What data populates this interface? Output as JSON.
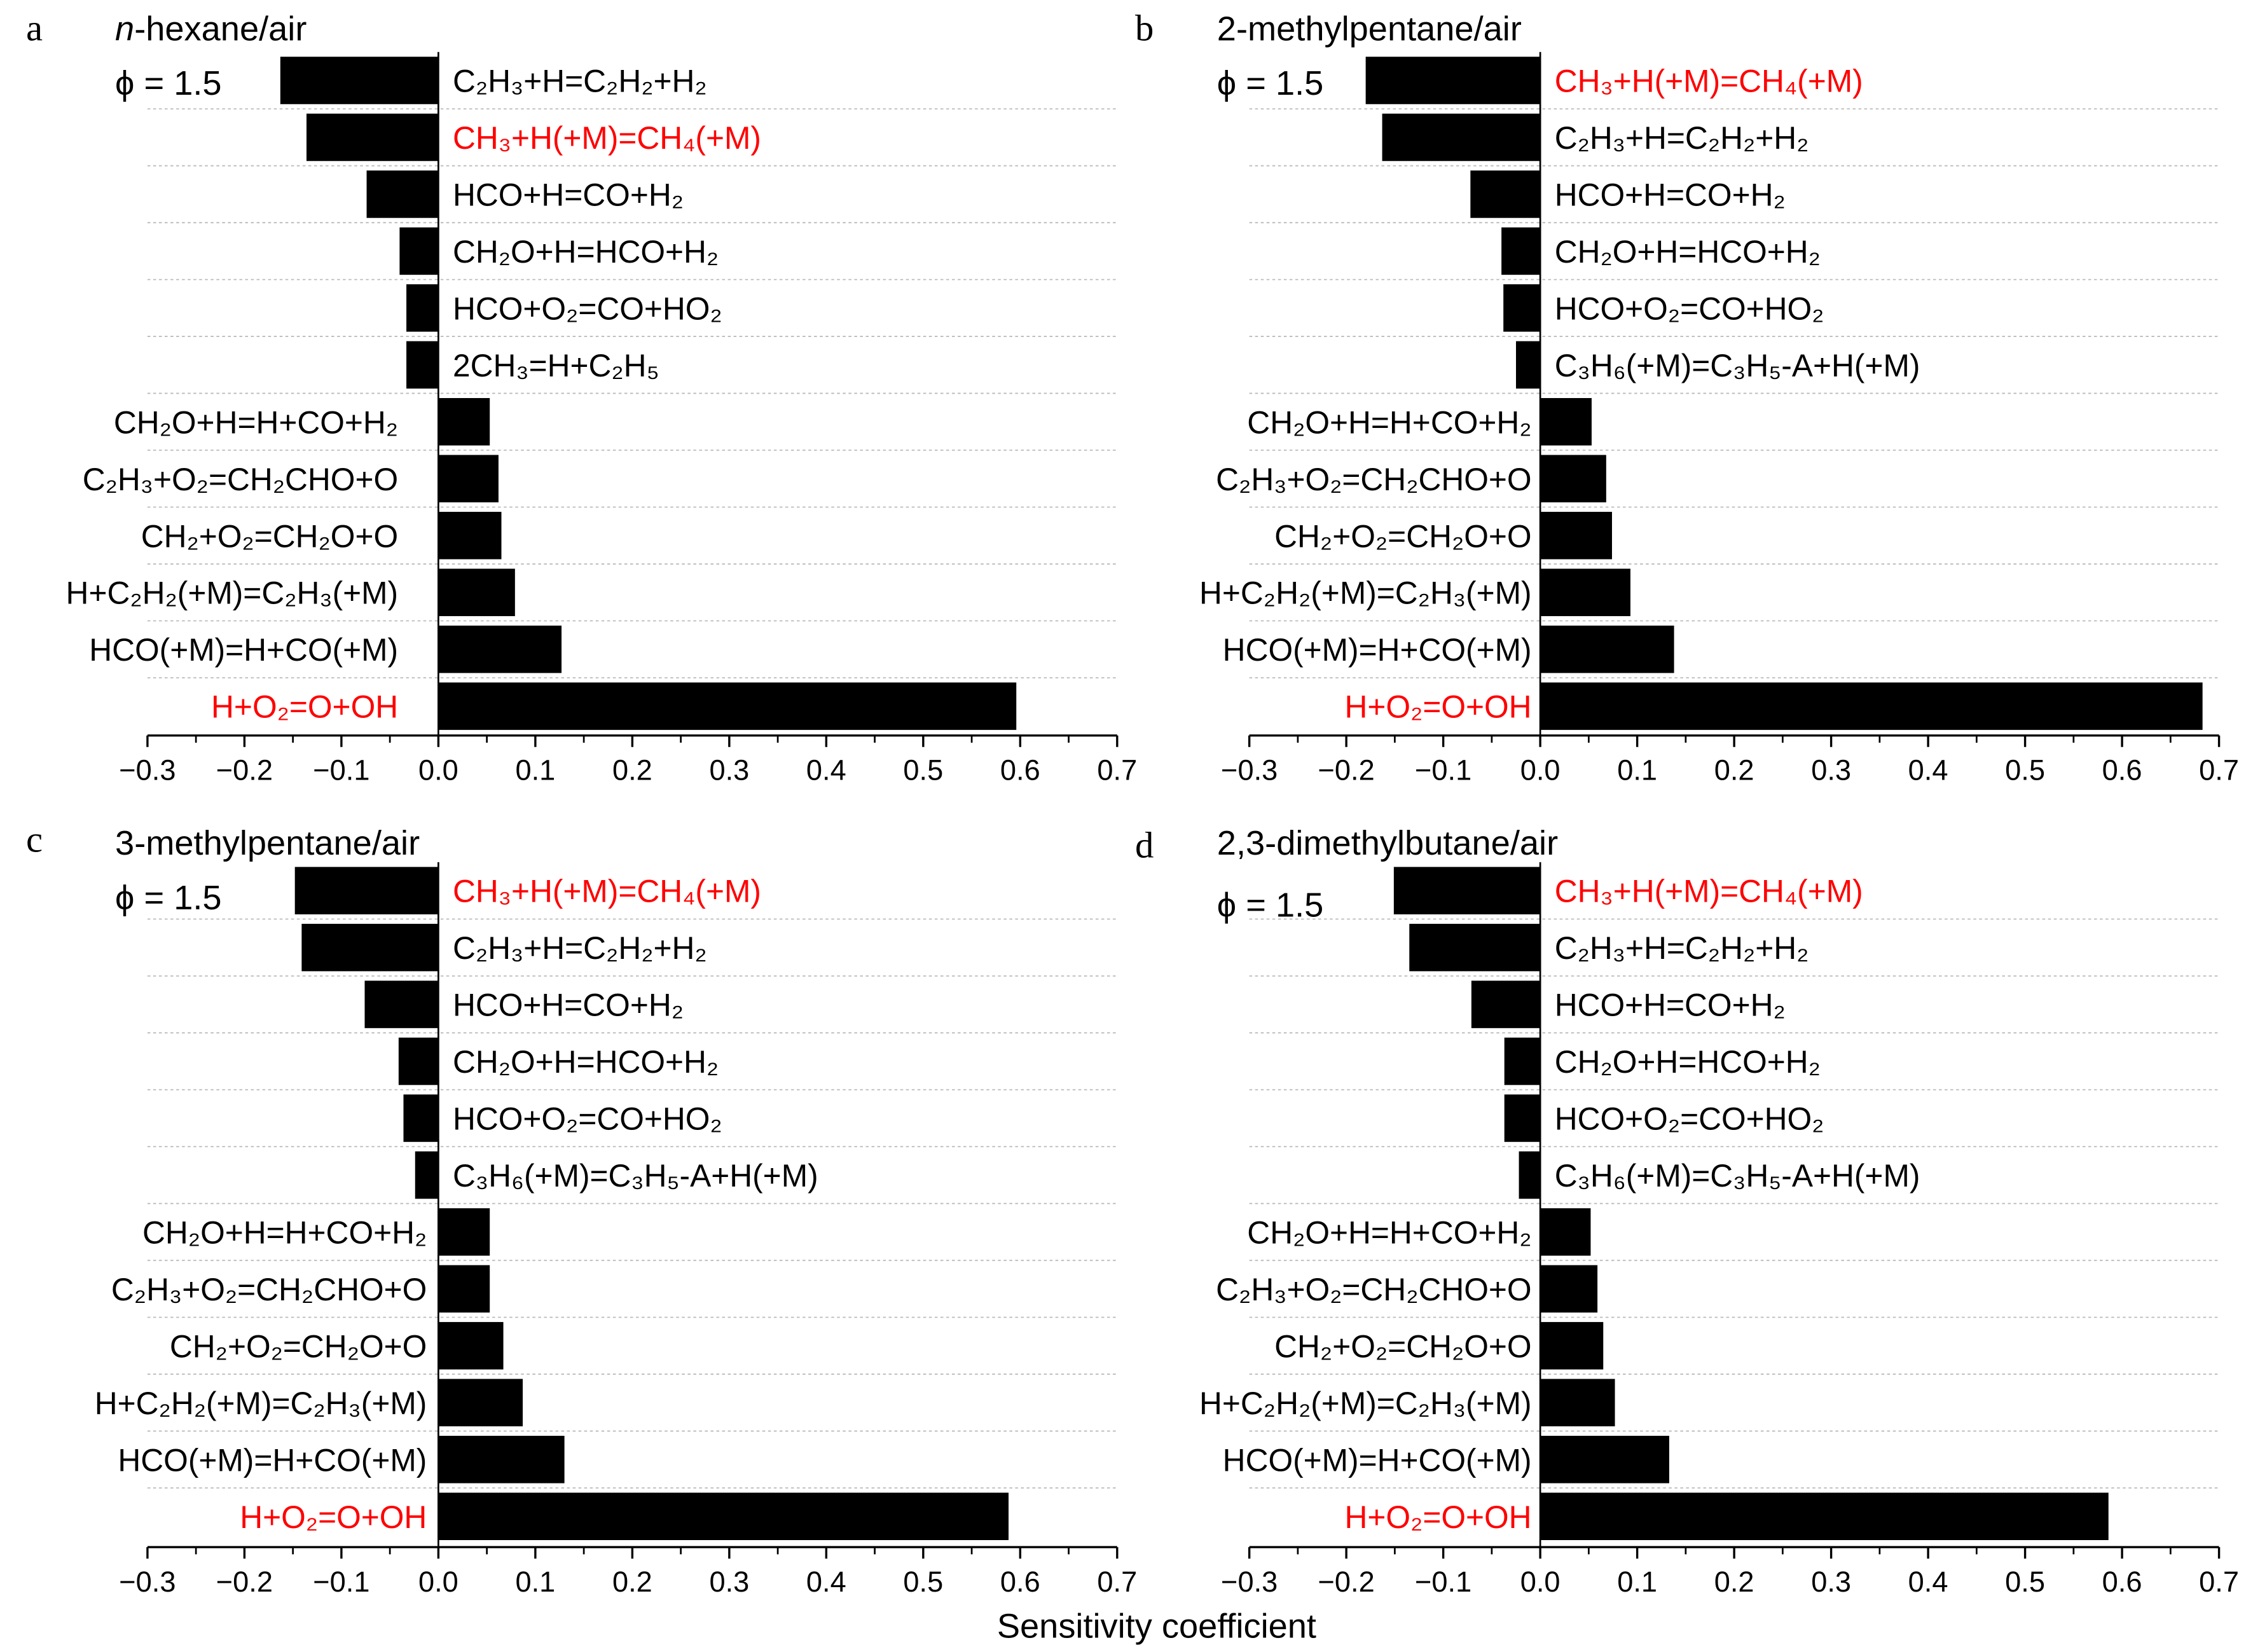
{
  "colors": {
    "bar": "#000000",
    "highlight": "#ff0000",
    "text": "#000000",
    "grid": "#bbbbbb"
  },
  "x_axis_label": "Sensitivity coefficient",
  "chart_data": [
    {
      "type": "bar",
      "orientation": "horizontal",
      "panel": "a",
      "title_italic_prefix": "n",
      "title": "-hexane/air",
      "annotation": "ϕ = 1.5",
      "xlim": [
        -0.3,
        0.7
      ],
      "xticks": [
        "−0.3",
        "−0.2",
        "−0.1",
        "0.0",
        "0.1",
        "0.2",
        "0.3",
        "0.4",
        "0.5",
        "0.6",
        "0.7"
      ],
      "grid": "horizontal dashed",
      "categories": [
        "C₂H₃+H=C₂H₂+H₂",
        "CH₃+H(+M)=CH₄(+M)",
        "HCO+H=CO+H₂",
        "CH₂O+H=HCO+H₂",
        "HCO+O₂=CO+HO₂",
        "2CH₃=H+C₂H₅",
        "CH₂O+H=H+CO+H₂",
        "C₂H₃+O₂=CH₂CHO+O",
        "CH₂+O₂=CH₂O+O",
        "H+C₂H₂(+M)=C₂H₃(+M)",
        "HCO(+M)=H+CO(+M)",
        "H+O₂=O+OH"
      ],
      "values": [
        -0.163,
        -0.136,
        -0.074,
        -0.04,
        -0.033,
        -0.033,
        0.053,
        0.062,
        0.065,
        0.079,
        0.127,
        0.596
      ],
      "highlighted": [
        "CH₃+H(+M)=CH₄(+M)",
        "H+O₂=O+OH"
      ]
    },
    {
      "type": "bar",
      "orientation": "horizontal",
      "panel": "b",
      "title_italic_prefix": "",
      "title": "2-methylpentane/air",
      "annotation": "ϕ = 1.5",
      "xlim": [
        -0.3,
        0.7
      ],
      "xticks": [
        "−0.3",
        "−0.2",
        "−0.1",
        "0.0",
        "0.1",
        "0.2",
        "0.3",
        "0.4",
        "0.5",
        "0.6",
        "0.7"
      ],
      "grid": "horizontal dashed",
      "categories": [
        "CH₃+H(+M)=CH₄(+M)",
        "C₂H₃+H=C₂H₂+H₂",
        "HCO+H=CO+H₂",
        "CH₂O+H=HCO+H₂",
        "HCO+O₂=CO+HO₂",
        "C₃H₆(+M)=C₃H₅-A+H(+M)",
        "CH₂O+H=H+CO+H₂",
        "C₂H₃+O₂=CH₂CHO+O",
        "CH₂+O₂=CH₂O+O",
        "H+C₂H₂(+M)=C₂H₃(+M)",
        "HCO(+M)=H+CO(+M)",
        "H+O₂=O+OH"
      ],
      "values": [
        -0.18,
        -0.163,
        -0.072,
        -0.04,
        -0.038,
        -0.025,
        0.053,
        0.068,
        0.074,
        0.093,
        0.138,
        0.683
      ],
      "highlighted": [
        "CH₃+H(+M)=CH₄(+M)",
        "H+O₂=O+OH"
      ]
    },
    {
      "type": "bar",
      "orientation": "horizontal",
      "panel": "c",
      "title_italic_prefix": "",
      "title": "3-methylpentane/air",
      "annotation": "ϕ = 1.5",
      "xlim": [
        -0.3,
        0.7
      ],
      "xticks": [
        "−0.3",
        "−0.2",
        "−0.1",
        "0.0",
        "0.1",
        "0.2",
        "0.3",
        "0.4",
        "0.5",
        "0.6",
        "0.7"
      ],
      "grid": "horizontal dashed",
      "categories": [
        "CH₃+H(+M)=CH₄(+M)",
        "C₂H₃+H=C₂H₂+H₂",
        "HCO+H=CO+H₂",
        "CH₂O+H=HCO+H₂",
        "HCO+O₂=CO+HO₂",
        "C₃H₆(+M)=C₃H₅-A+H(+M)",
        "CH₂O+H=H+CO+H₂",
        "C₂H₃+O₂=CH₂CHO+O",
        "CH₂+O₂=CH₂O+O",
        "H+C₂H₂(+M)=C₂H₃(+M)",
        "HCO(+M)=H+CO(+M)",
        "H+O₂=O+OH"
      ],
      "values": [
        -0.148,
        -0.141,
        -0.076,
        -0.041,
        -0.036,
        -0.024,
        0.053,
        0.053,
        0.067,
        0.087,
        0.13,
        0.588
      ],
      "highlighted": [
        "CH₃+H(+M)=CH₄(+M)",
        "H+O₂=O+OH"
      ]
    },
    {
      "type": "bar",
      "orientation": "horizontal",
      "panel": "d",
      "title_italic_prefix": "",
      "title": "2,3-dimethylbutane/air",
      "annotation": "ϕ = 1.5",
      "xlim": [
        -0.3,
        0.7
      ],
      "xticks": [
        "−0.3",
        "−0.2",
        "−0.1",
        "0.0",
        "0.1",
        "0.2",
        "0.3",
        "0.4",
        "0.5",
        "0.6",
        "0.7"
      ],
      "grid": "horizontal dashed",
      "categories": [
        "CH₃+H(+M)=CH₄(+M)",
        "C₂H₃+H=C₂H₂+H₂",
        "HCO+H=CO+H₂",
        "CH₂O+H=HCO+H₂",
        "HCO+O₂=CO+HO₂",
        "C₃H₆(+M)=C₃H₅-A+H(+M)",
        "CH₂O+H=H+CO+H₂",
        "C₂H₃+O₂=CH₂CHO+O",
        "CH₂+O₂=CH₂O+O",
        "H+C₂H₂(+M)=C₂H₃(+M)",
        "HCO(+M)=H+CO(+M)",
        "H+O₂=O+OH"
      ],
      "values": [
        -0.151,
        -0.135,
        -0.071,
        -0.037,
        -0.037,
        -0.022,
        0.052,
        0.059,
        0.065,
        0.077,
        0.133,
        0.586
      ],
      "highlighted": [
        "CH₃+H(+M)=CH₄(+M)",
        "H+O₂=O+OH"
      ]
    }
  ]
}
